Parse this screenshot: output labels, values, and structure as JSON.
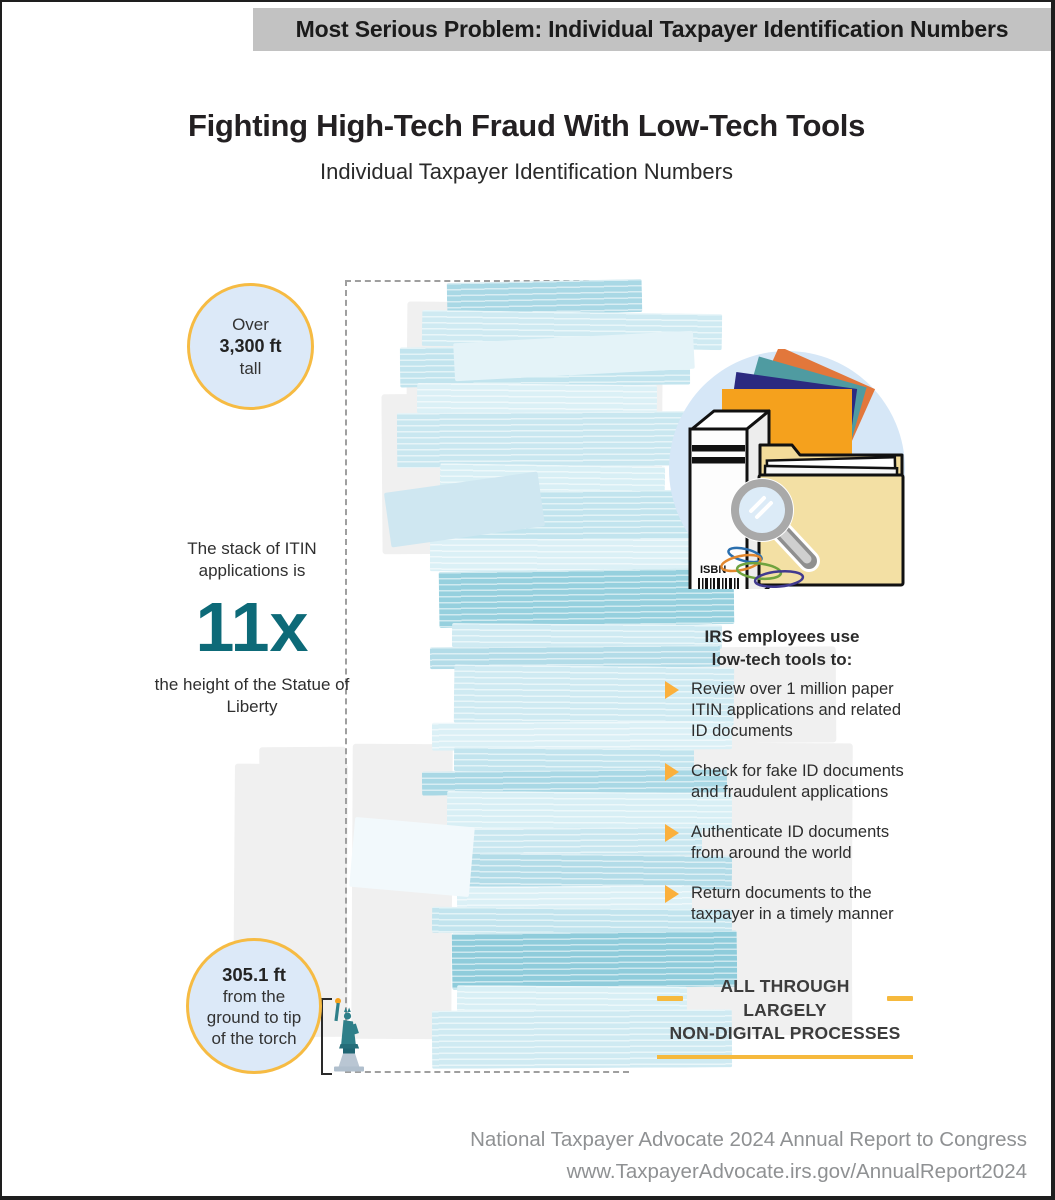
{
  "banner": {
    "text": "Most Serious Problem: Individual Taxpayer Identification Numbers"
  },
  "header": {
    "title": "Fighting High-Tech Fraud With Low-Tech Tools",
    "subtitle": "Individual Taxpayer Identification Numbers"
  },
  "top_circle": {
    "line1": "Over",
    "value": "3,300 ft",
    "line2": "tall"
  },
  "left_stat": {
    "intro": "The stack of ITIN applications is",
    "multiplier": "11x",
    "outro": "the height of the Statue of Liberty"
  },
  "bottom_circle": {
    "value": "305.1 ft",
    "label": "from the ground to tip of the torch"
  },
  "right_panel": {
    "heading_line1": "IRS employees use",
    "heading_line2": "low-tech tools to:",
    "bullets": [
      "Review over 1 million paper ITIN applications and related ID documents",
      "Check for fake ID documents and fraudulent applications",
      "Authenticate ID documents from around the world",
      "Return documents to the taxpayer in a timely manner"
    ],
    "callout_line1": "ALL THROUGH LARGELY",
    "callout_line2": "NON-DIGITAL PROCESSES"
  },
  "illustration": {
    "book_label": "ISBN"
  },
  "footer": {
    "line1": "National Taxpayer Advocate 2024 Annual Report to Congress",
    "line2": "www.TaxpayerAdvocate.irs.gov/AnnualReport2024"
  },
  "colors": {
    "banner_gray": "#C2C2C2",
    "accent_yellow": "#F6BB43",
    "teal_stat": "#0D6A78",
    "paper_blue": "#BCE0EB",
    "circle_fill": "#DCE9F8",
    "footer_gray": "#8F9193"
  }
}
